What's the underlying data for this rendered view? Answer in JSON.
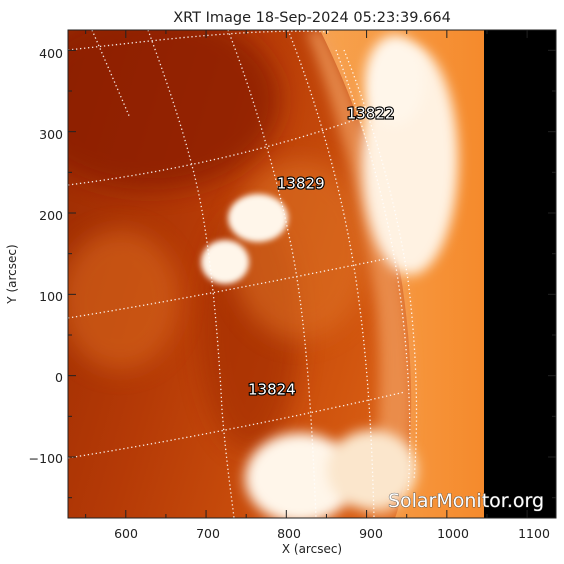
{
  "title": "XRT Image 18-Sep-2024 05:23:39.664",
  "x_axis": {
    "label": "X (arcsec)",
    "range": [
      528,
      1136
    ],
    "ticks": [
      "600",
      "700",
      "800",
      "900",
      "1000",
      "1100"
    ],
    "tick_values": [
      600,
      700,
      800,
      900,
      1000,
      1100
    ]
  },
  "y_axis": {
    "label": "Y (arcsec)",
    "range": [
      -175,
      425
    ],
    "ticks": [
      "400",
      "300",
      "200",
      "100",
      "0",
      "−100"
    ],
    "tick_values": [
      400,
      300,
      200,
      100,
      0,
      -100
    ]
  },
  "regions": [
    {
      "label": "13822",
      "x": 905,
      "y": 316
    },
    {
      "label": "13829",
      "x": 818,
      "y": 230
    },
    {
      "label": "13824",
      "x": 782,
      "y": -23
    }
  ],
  "watermark": "SolarMonitor.org",
  "colors": {
    "disk_dark": "#8a1e00",
    "disk_mid": "#c84a0c",
    "disk_bright": "#f08a32",
    "hot": "#fff4e6",
    "offlimb": "#f07a20",
    "no_data": "#000000"
  }
}
